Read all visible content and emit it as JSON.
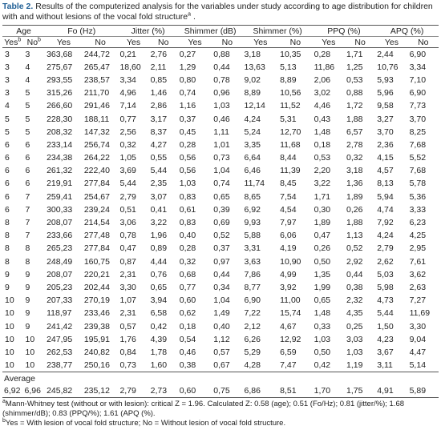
{
  "caption": {
    "label": "Table 2.",
    "text": "Results of the computerized analysis for the variables under study according to age distribution for children with and without lesions of the vocal fold structure",
    "mark": "a",
    "end": " ."
  },
  "table": {
    "groups": [
      "Age",
      "Fo (Hz)",
      "Jitter (%)",
      "Shimmer (dB)",
      "Shimmer (%)",
      "PPQ (%)",
      "APQ (%)"
    ],
    "subheaders": [
      "Yes",
      "No",
      "Yes",
      "No",
      "Yes",
      "No",
      "Yes",
      "No",
      "Yes",
      "No",
      "Yes",
      "No",
      "Yes",
      "No"
    ],
    "subheader_mark": "b",
    "rows": [
      [
        "3",
        "3",
        "363,68",
        "244,72",
        "0,21",
        "2,76",
        "0,27",
        "0,88",
        "3,18",
        "10,35",
        "0,28",
        "1,71",
        "2,44",
        "6,90"
      ],
      [
        "3",
        "4",
        "275,67",
        "265,47",
        "18,60",
        "2,11",
        "1,29",
        "0,44",
        "13,63",
        "5,13",
        "11,86",
        "1,25",
        "10,76",
        "3,34"
      ],
      [
        "3",
        "4",
        "293,55",
        "238,57",
        "3,34",
        "0,85",
        "0,80",
        "0,78",
        "9,02",
        "8,89",
        "2,06",
        "0,53",
        "5,93",
        "7,10"
      ],
      [
        "3",
        "5",
        "315,26",
        "211,70",
        "4,96",
        "1,46",
        "0,74",
        "0,96",
        "8,89",
        "10,56",
        "3,02",
        "0,88",
        "5,96",
        "6,90"
      ],
      [
        "4",
        "5",
        "266,60",
        "291,46",
        "7,14",
        "2,86",
        "1,16",
        "1,03",
        "12,14",
        "11,52",
        "4,46",
        "1,72",
        "9,58",
        "7,73"
      ],
      [
        "5",
        "5",
        "228,30",
        "188,11",
        "0,77",
        "3,17",
        "0,37",
        "0,46",
        "4,24",
        "5,31",
        "0,43",
        "1,88",
        "3,27",
        "3,70"
      ],
      [
        "5",
        "5",
        "208,32",
        "147,32",
        "2,56",
        "8,37",
        "0,45",
        "1,11",
        "5,24",
        "12,70",
        "1,48",
        "6,57",
        "3,70",
        "8,25"
      ],
      [
        "6",
        "6",
        "233,14",
        "256,74",
        "0,32",
        "4,27",
        "0,28",
        "1,01",
        "3,35",
        "11,68",
        "0,18",
        "2,78",
        "2,36",
        "7,68"
      ],
      [
        "6",
        "6",
        "234,38",
        "264,22",
        "1,05",
        "0,55",
        "0,56",
        "0,73",
        "6,64",
        "8,44",
        "0,53",
        "0,32",
        "4,15",
        "5,52"
      ],
      [
        "6",
        "6",
        "261,32",
        "222,40",
        "3,69",
        "5,44",
        "0,56",
        "1,04",
        "6,46",
        "11,39",
        "2,20",
        "3,18",
        "4,57",
        "7,68"
      ],
      [
        "6",
        "6",
        "219,91",
        "277,84",
        "5,44",
        "2,35",
        "1,03",
        "0,74",
        "11,74",
        "8,45",
        "3,22",
        "1,36",
        "8,13",
        "5,78"
      ],
      [
        "6",
        "7",
        "259,41",
        "254,67",
        "2,79",
        "3,07",
        "0,83",
        "0,65",
        "8,65",
        "7,54",
        "1,71",
        "1,89",
        "5,94",
        "5,36"
      ],
      [
        "6",
        "7",
        "300,33",
        "239,24",
        "0,51",
        "0,41",
        "0,61",
        "0,39",
        "6,92",
        "4,54",
        "0,30",
        "0,26",
        "4,74",
        "3,33"
      ],
      [
        "8",
        "7",
        "208,07",
        "214,54",
        "3,06",
        "3,22",
        "0,83",
        "0,69",
        "9,93",
        "7,97",
        "1,89",
        "1,88",
        "7,92",
        "6,23"
      ],
      [
        "8",
        "7",
        "233,66",
        "277,48",
        "0,78",
        "1,96",
        "0,40",
        "0,52",
        "5,88",
        "6,06",
        "0,47",
        "1,13",
        "4,24",
        "4,25"
      ],
      [
        "8",
        "8",
        "265,23",
        "277,84",
        "0,47",
        "0,89",
        "0,28",
        "0,37",
        "3,31",
        "4,19",
        "0,26",
        "0,52",
        "2,79",
        "2,95"
      ],
      [
        "8",
        "8",
        "248,49",
        "160,75",
        "0,87",
        "4,44",
        "0,32",
        "0,97",
        "3,63",
        "10,90",
        "0,50",
        "2,92",
        "2,62",
        "7,61"
      ],
      [
        "9",
        "9",
        "208,07",
        "220,21",
        "2,31",
        "0,76",
        "0,68",
        "0,44",
        "7,86",
        "4,99",
        "1,35",
        "0,44",
        "5,03",
        "3,62"
      ],
      [
        "9",
        "9",
        "205,23",
        "202,44",
        "3,30",
        "0,65",
        "0,77",
        "0,34",
        "8,77",
        "3,92",
        "1,99",
        "0,38",
        "5,98",
        "2,63"
      ],
      [
        "10",
        "9",
        "207,33",
        "270,19",
        "1,07",
        "3,94",
        "0,60",
        "1,04",
        "6,90",
        "11,00",
        "0,65",
        "2,32",
        "4,73",
        "7,27"
      ],
      [
        "10",
        "9",
        "118,97",
        "233,46",
        "2,31",
        "6,58",
        "0,62",
        "1,49",
        "7,22",
        "15,74",
        "1,48",
        "4,35",
        "5,44",
        "11,69"
      ],
      [
        "10",
        "9",
        "241,42",
        "239,38",
        "0,57",
        "0,42",
        "0,18",
        "0,40",
        "2,12",
        "4,67",
        "0,33",
        "0,25",
        "1,50",
        "3,30"
      ],
      [
        "10",
        "10",
        "247,95",
        "195,91",
        "1,76",
        "4,39",
        "0,54",
        "1,12",
        "6,26",
        "12,92",
        "1,03",
        "3,03",
        "4,23",
        "9,04"
      ],
      [
        "10",
        "10",
        "262,53",
        "240,82",
        "0,84",
        "1,78",
        "0,46",
        "0,57",
        "5,29",
        "6,59",
        "0,50",
        "1,03",
        "3,67",
        "4,47"
      ],
      [
        "10",
        "10",
        "238,77",
        "250,16",
        "0,73",
        "1,60",
        "0,38",
        "0,67",
        "4,28",
        "7,47",
        "0,42",
        "1,19",
        "3,11",
        "5,14"
      ]
    ],
    "average_label": "Average",
    "average": [
      "6,92",
      "6,96",
      "245,82",
      "235,12",
      "2,79",
      "2,73",
      "0,60",
      "0,75",
      "6,86",
      "8,51",
      "1,70",
      "1,75",
      "4,91",
      "5,89"
    ]
  },
  "footnotes": [
    {
      "mark": "a",
      "text": "Mann-Whitney test (without or with lesion): critical Z = 1.96. Calculated Z: 0.58 (age); 0.51 (Fo/Hz); 0.81 (jitter/%); 1.68 (shimmer/dB); 0.83 (PPQ/%); 1.61 (APQ (%)."
    },
    {
      "mark": "b",
      "text": "Yes = With lesion of vocal fold structure; No = Without lesion of vocal fold structure."
    }
  ]
}
